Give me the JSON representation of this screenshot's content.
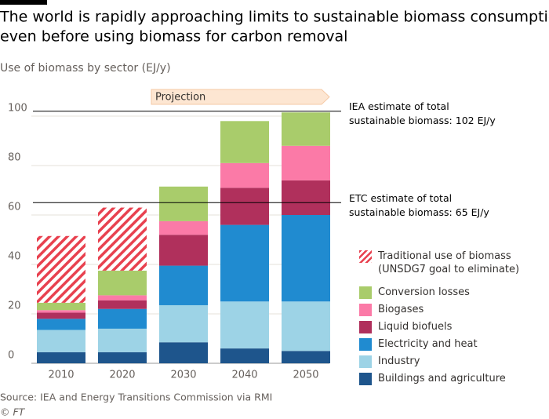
{
  "chart_data": {
    "type": "stacked_bar",
    "title": [
      "The world is rapidly approaching limits to sustainable biomass consumption",
      "even before using biomass for carbon removal"
    ],
    "subtitle": "Use of biomass by sector (EJ/y)",
    "categories": [
      "2010",
      "2020",
      "2030",
      "2040",
      "2050"
    ],
    "series": [
      {
        "name": "Buildings and agriculture",
        "color": "#1e558c",
        "values": [
          4.5,
          4.5,
          8.5,
          6,
          5
        ]
      },
      {
        "name": "Industry",
        "color": "#9dd3e6",
        "values": [
          9,
          9.5,
          15,
          19,
          20
        ]
      },
      {
        "name": "Electricity and heat",
        "color": "#208bd0",
        "values": [
          4.5,
          8,
          16,
          31,
          35
        ]
      },
      {
        "name": "Liquid biofuels",
        "color": "#b0305c",
        "values": [
          2.5,
          3.5,
          12.5,
          15,
          14
        ]
      },
      {
        "name": "Biogases",
        "color": "#fb7aa7",
        "values": [
          1,
          2,
          5.5,
          10,
          14
        ]
      },
      {
        "name": "Conversion losses",
        "color": "#a9cc6b",
        "values": [
          3,
          10,
          14,
          17,
          13.5
        ]
      },
      {
        "name": "Traditional use of biomass\n(UNSDG7 goal to eliminate)",
        "color": "#e8414f",
        "hatch": true,
        "values": [
          27,
          25.5,
          0,
          0,
          0
        ]
      }
    ],
    "ylim": [
      0,
      110
    ],
    "yticks": [
      0,
      20,
      40,
      60,
      80,
      100
    ],
    "grid": true,
    "projection_label": "Projection",
    "reference_lines": [
      {
        "value": 102,
        "label": [
          "IEA estimate of total",
          "sustainable biomass: 102 EJ/y"
        ]
      },
      {
        "value": 65,
        "label": [
          "ETC estimate of total",
          "sustainable biomass: 65 EJ/y"
        ]
      }
    ],
    "source": "Source: IEA and Energy Transitions Commission via RMI",
    "credit": "© FT"
  }
}
